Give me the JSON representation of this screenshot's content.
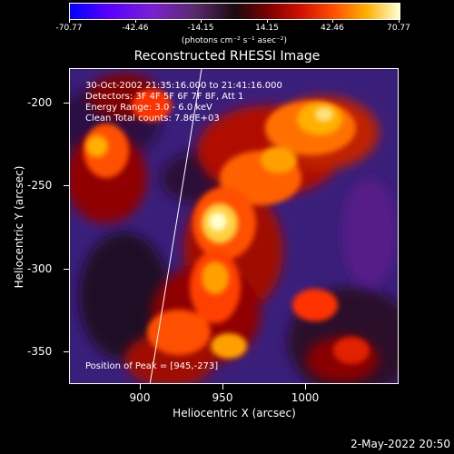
{
  "colorbar": {
    "ticks": [
      "-70.77",
      "-42.46",
      "-14.15",
      "14.15",
      "42.46",
      "70.77"
    ],
    "units": "(photons cm⁻² s⁻¹ asec⁻²)"
  },
  "title": "Reconstructed RHESSI Image",
  "axes": {
    "xlabel": "Heliocentric X (arcsec)",
    "ylabel": "Heliocentric Y (arcsec)",
    "xticks": [
      "900",
      "950",
      "1000"
    ],
    "yticks": [
      "-200",
      "-250",
      "-300",
      "-350"
    ]
  },
  "info": {
    "time": "30-Oct-2002 21:35:16.000 to 21:41:16.000",
    "detectors": "Detectors: 3F 4F 5F 6F 7F 8F, Att 1",
    "energy": "Energy Range: 3.0 - 6.0 keV",
    "clean": "Clean     Total counts: 7.86E+03",
    "peak": "Position of Peak = [945,-273]"
  },
  "footer": "2-May-2022 20:50"
}
